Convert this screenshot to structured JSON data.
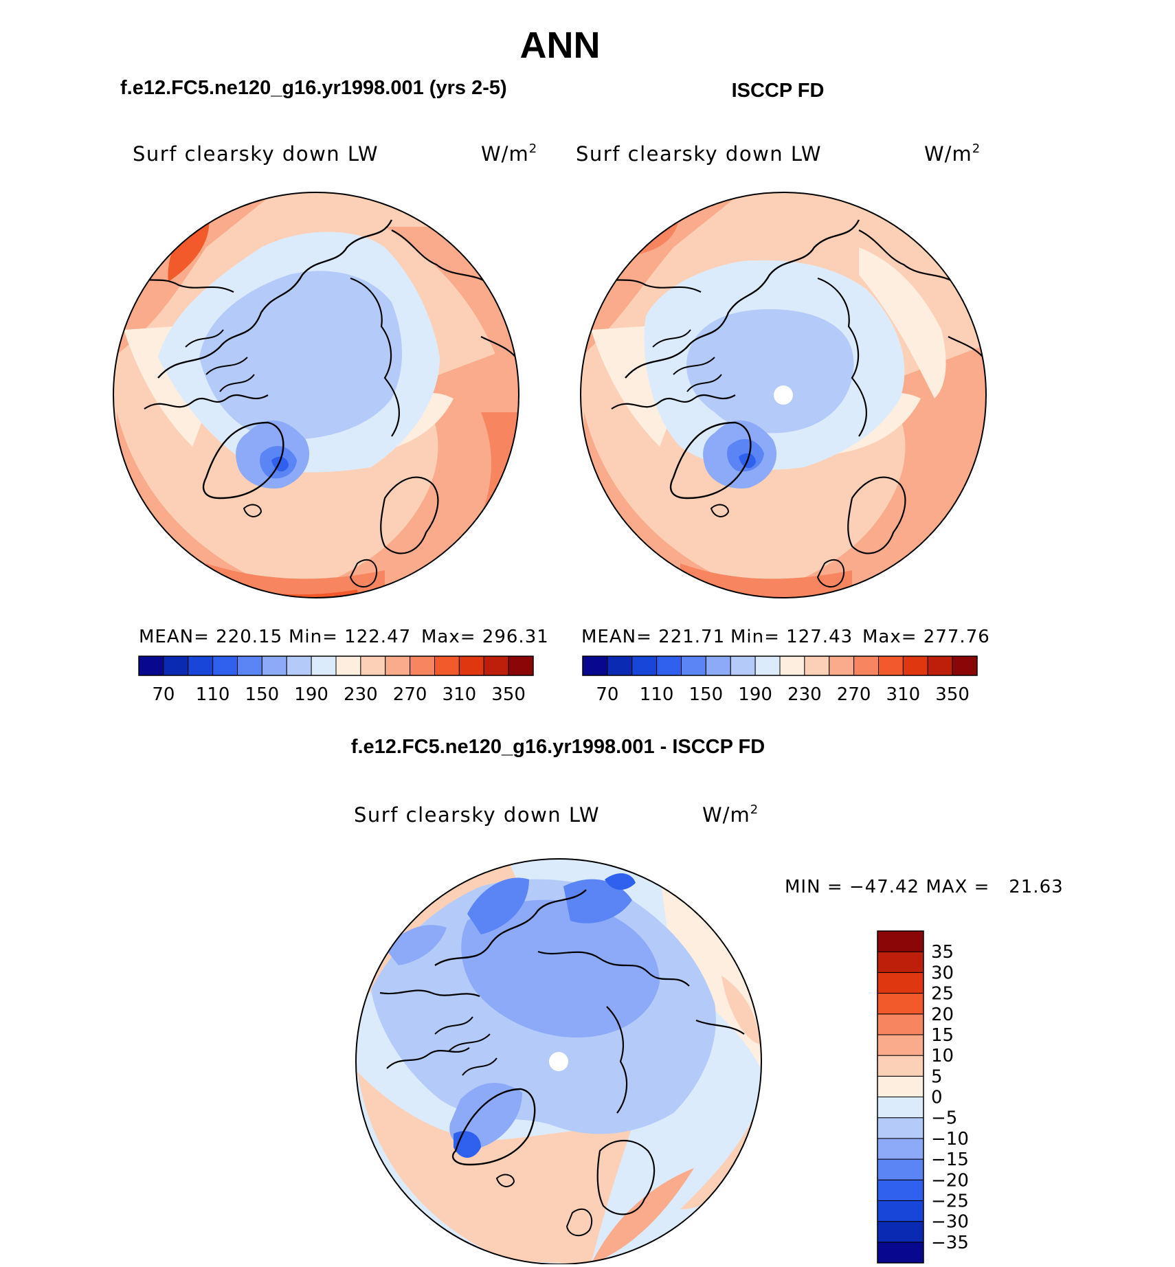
{
  "title": "ANN",
  "panels": [
    {
      "heading": "f.e12.FC5.ne120_g16.yr1998.001 (yrs 2-5)",
      "variable": "Surf clearsky down LW",
      "units": "W/m",
      "units_sup": "2",
      "stats": {
        "mean": "MEAN= 220.15",
        "min": "Min= 122.47",
        "max": "Max= 296.31"
      }
    },
    {
      "heading": "ISCCP FD",
      "variable": "Surf clearsky down LW",
      "units": "W/m",
      "units_sup": "2",
      "stats": {
        "mean": "MEAN= 221.71",
        "min": "Min= 127.43",
        "max": "Max= 277.76"
      }
    }
  ],
  "diff": {
    "heading": "f.e12.FC5.ne120_g16.yr1998.001 - ISCCP FD",
    "variable": "Surf clearsky down LW",
    "units": "W/m",
    "units_sup": "2",
    "minmax": "MIN = −47.42 MAX =   21.63"
  },
  "colorbar_abs": {
    "colors": [
      "#08088f",
      "#0b2ab4",
      "#1846d9",
      "#2f61ee",
      "#5b84f4",
      "#8caaf7",
      "#b4cbf9",
      "#dcebfc",
      "#fdeee0",
      "#fcd0b6",
      "#f9ab8b",
      "#f68560",
      "#f25a2c",
      "#df3810",
      "#bd1f0a",
      "#8b0606"
    ],
    "ticks": [
      "70",
      "110",
      "150",
      "190",
      "230",
      "270",
      "310",
      "350"
    ]
  },
  "colorbar_diff": {
    "colors": [
      "#08088f",
      "#0b2ab4",
      "#1846d9",
      "#2f61ee",
      "#5b84f4",
      "#8caaf7",
      "#b4cbf9",
      "#dcebfc",
      "#fdeee0",
      "#fcd0b6",
      "#f9ab8b",
      "#f68560",
      "#f25a2c",
      "#df3810",
      "#bd1f0a",
      "#8b0606"
    ],
    "ticks": [
      "35",
      "30",
      "25",
      "20",
      "15",
      "10",
      "5",
      "0",
      "−5",
      "−10",
      "−15",
      "−20",
      "−25",
      "−30",
      "−35"
    ]
  }
}
